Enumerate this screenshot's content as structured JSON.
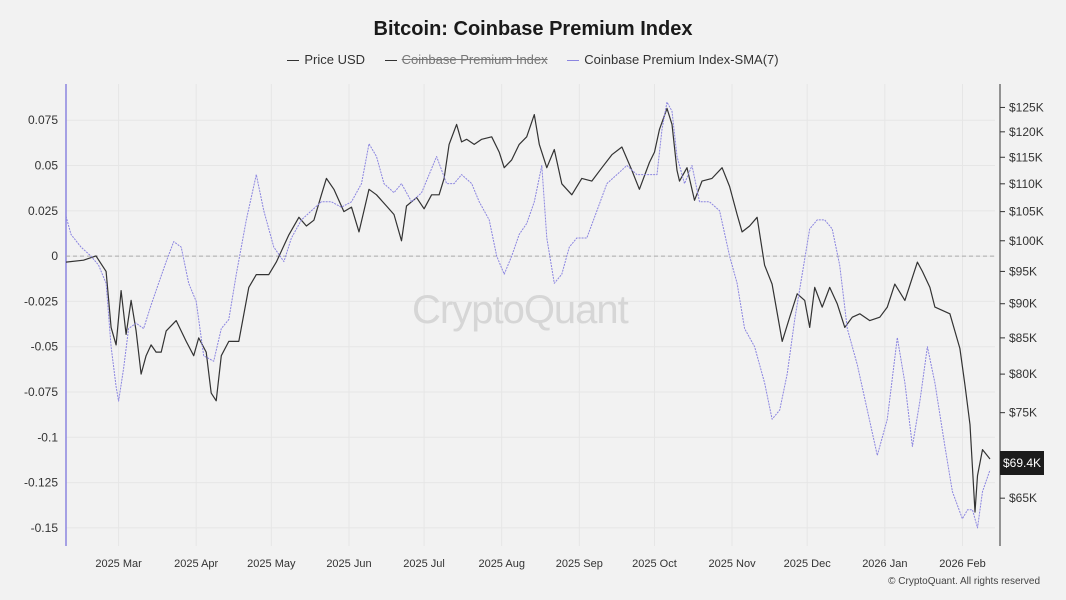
{
  "chart_data": {
    "type": "line",
    "title": "Bitcoin: Coinbase Premium Index",
    "legend": [
      {
        "name": "Price USD",
        "color": "#333333",
        "visible": true
      },
      {
        "name": "Coinbase Premium Index",
        "color": "#333333",
        "visible": false
      },
      {
        "name": "Coinbase Premium Index-SMA(7)",
        "color": "#8b85e0",
        "visible": true
      }
    ],
    "x_range": [
      "2025-02-08",
      "2026-02-14"
    ],
    "x_ticks": [
      "2025 Mar",
      "2025 Apr",
      "2025 May",
      "2025 Jun",
      "2025 Jul",
      "2025 Aug",
      "2025 Sep",
      "2025 Oct",
      "2025 Nov",
      "2025 Dec",
      "2026 Jan",
      "2026 Feb"
    ],
    "y_left": {
      "range": [
        -0.16,
        0.095
      ],
      "ticks": [
        0.075,
        0.05,
        0.025,
        0,
        -0.025,
        -0.05,
        -0.075,
        -0.1,
        -0.125,
        -0.15
      ],
      "tick_labels": [
        "0.075",
        "0.05",
        "0.025",
        "0",
        "-0.025",
        "-0.05",
        "-0.075",
        "-0.1",
        "-0.125",
        "-0.15"
      ]
    },
    "y_right": {
      "scale": "log",
      "range": [
        60000,
        130000
      ],
      "ticks": [
        125000,
        120000,
        115000,
        110000,
        105000,
        100000,
        95000,
        90000,
        85000,
        80000,
        75000,
        65000
      ],
      "tick_labels": [
        "$125K",
        "$120K",
        "$115K",
        "$110K",
        "$105K",
        "$100K",
        "$95K",
        "$90K",
        "$85K",
        "$80K",
        "$75K",
        "$65K"
      ]
    },
    "zero_line": "dashed",
    "current_price_label": "$69.4K",
    "series": [
      {
        "name": "Price USD",
        "axis": "right",
        "points": [
          [
            "2025-02-08",
            96500
          ],
          [
            "2025-02-15",
            96800
          ],
          [
            "2025-02-20",
            97500
          ],
          [
            "2025-02-24",
            95000
          ],
          [
            "2025-02-26",
            86500
          ],
          [
            "2025-02-28",
            84000
          ],
          [
            "2025-03-02",
            92000
          ],
          [
            "2025-03-04",
            85500
          ],
          [
            "2025-03-06",
            90500
          ],
          [
            "2025-03-08",
            86000
          ],
          [
            "2025-03-10",
            80000
          ],
          [
            "2025-03-12",
            82500
          ],
          [
            "2025-03-14",
            84000
          ],
          [
            "2025-03-16",
            83000
          ],
          [
            "2025-03-18",
            83000
          ],
          [
            "2025-03-20",
            86000
          ],
          [
            "2025-03-24",
            87500
          ],
          [
            "2025-03-28",
            84500
          ],
          [
            "2025-03-31",
            82500
          ],
          [
            "2025-04-02",
            85000
          ],
          [
            "2025-04-05",
            83000
          ],
          [
            "2025-04-07",
            77500
          ],
          [
            "2025-04-09",
            76500
          ],
          [
            "2025-04-11",
            82500
          ],
          [
            "2025-04-14",
            84500
          ],
          [
            "2025-04-18",
            84500
          ],
          [
            "2025-04-22",
            92500
          ],
          [
            "2025-04-25",
            94500
          ],
          [
            "2025-04-30",
            94500
          ],
          [
            "2025-05-03",
            96500
          ],
          [
            "2025-05-08",
            101000
          ],
          [
            "2025-05-12",
            104000
          ],
          [
            "2025-05-15",
            102500
          ],
          [
            "2025-05-18",
            103500
          ],
          [
            "2025-05-21",
            108000
          ],
          [
            "2025-05-23",
            111000
          ],
          [
            "2025-05-26",
            109000
          ],
          [
            "2025-05-30",
            105000
          ],
          [
            "2025-06-02",
            105800
          ],
          [
            "2025-06-05",
            101500
          ],
          [
            "2025-06-09",
            109000
          ],
          [
            "2025-06-12",
            108000
          ],
          [
            "2025-06-16",
            106000
          ],
          [
            "2025-06-19",
            104500
          ],
          [
            "2025-06-22",
            100000
          ],
          [
            "2025-06-24",
            106000
          ],
          [
            "2025-06-28",
            107500
          ],
          [
            "2025-07-01",
            105500
          ],
          [
            "2025-07-04",
            108000
          ],
          [
            "2025-07-07",
            108000
          ],
          [
            "2025-07-09",
            111000
          ],
          [
            "2025-07-11",
            117500
          ],
          [
            "2025-07-14",
            121500
          ],
          [
            "2025-07-16",
            118000
          ],
          [
            "2025-07-18",
            118500
          ],
          [
            "2025-07-21",
            117500
          ],
          [
            "2025-07-24",
            118500
          ],
          [
            "2025-07-28",
            119000
          ],
          [
            "2025-07-31",
            116000
          ],
          [
            "2025-08-02",
            113000
          ],
          [
            "2025-08-05",
            114500
          ],
          [
            "2025-08-08",
            117500
          ],
          [
            "2025-08-11",
            119000
          ],
          [
            "2025-08-14",
            123500
          ],
          [
            "2025-08-16",
            117500
          ],
          [
            "2025-08-19",
            113000
          ],
          [
            "2025-08-22",
            116500
          ],
          [
            "2025-08-25",
            110000
          ],
          [
            "2025-08-29",
            108000
          ],
          [
            "2025-09-02",
            111000
          ],
          [
            "2025-09-06",
            110500
          ],
          [
            "2025-09-10",
            113000
          ],
          [
            "2025-09-14",
            115500
          ],
          [
            "2025-09-18",
            117000
          ],
          [
            "2025-09-22",
            112500
          ],
          [
            "2025-09-25",
            109000
          ],
          [
            "2025-09-29",
            114000
          ],
          [
            "2025-10-01",
            116000
          ],
          [
            "2025-10-03",
            120500
          ],
          [
            "2025-10-06",
            124800
          ],
          [
            "2025-10-08",
            121500
          ],
          [
            "2025-10-10",
            112500
          ],
          [
            "2025-10-11",
            110500
          ],
          [
            "2025-10-14",
            113000
          ],
          [
            "2025-10-17",
            107000
          ],
          [
            "2025-10-20",
            110500
          ],
          [
            "2025-10-24",
            111000
          ],
          [
            "2025-10-28",
            113000
          ],
          [
            "2025-10-31",
            109500
          ],
          [
            "2025-11-03",
            104500
          ],
          [
            "2025-11-05",
            101500
          ],
          [
            "2025-11-08",
            102500
          ],
          [
            "2025-11-11",
            104000
          ],
          [
            "2025-11-14",
            96000
          ],
          [
            "2025-11-17",
            93000
          ],
          [
            "2025-11-21",
            84500
          ],
          [
            "2025-11-24",
            88000
          ],
          [
            "2025-11-27",
            91500
          ],
          [
            "2025-11-30",
            90500
          ],
          [
            "2025-12-02",
            86500
          ],
          [
            "2025-12-04",
            92500
          ],
          [
            "2025-12-07",
            89500
          ],
          [
            "2025-12-10",
            92500
          ],
          [
            "2025-12-13",
            90000
          ],
          [
            "2025-12-16",
            86500
          ],
          [
            "2025-12-19",
            88000
          ],
          [
            "2025-12-22",
            88500
          ],
          [
            "2025-12-26",
            87500
          ],
          [
            "2025-12-30",
            88000
          ],
          [
            "2026-01-02",
            89500
          ],
          [
            "2026-01-05",
            93000
          ],
          [
            "2026-01-09",
            90500
          ],
          [
            "2026-01-14",
            96500
          ],
          [
            "2026-01-16",
            95000
          ],
          [
            "2026-01-19",
            92500
          ],
          [
            "2026-01-21",
            89500
          ],
          [
            "2026-01-24",
            89000
          ],
          [
            "2026-01-27",
            88500
          ],
          [
            "2026-01-31",
            83500
          ],
          [
            "2026-02-02",
            78500
          ],
          [
            "2026-02-04",
            73500
          ],
          [
            "2026-02-06",
            63500
          ],
          [
            "2026-02-07",
            67500
          ],
          [
            "2026-02-09",
            70500
          ],
          [
            "2026-02-12",
            69400
          ]
        ]
      },
      {
        "name": "Coinbase Premium Index-SMA(7)",
        "axis": "left",
        "points": [
          [
            "2025-02-08",
            0.022
          ],
          [
            "2025-02-10",
            0.012
          ],
          [
            "2025-02-14",
            0.005
          ],
          [
            "2025-02-18",
            0.0
          ],
          [
            "2025-02-21",
            -0.005
          ],
          [
            "2025-02-24",
            -0.015
          ],
          [
            "2025-02-26",
            -0.05
          ],
          [
            "2025-02-28",
            -0.072
          ],
          [
            "2025-03-01",
            -0.08
          ],
          [
            "2025-03-03",
            -0.062
          ],
          [
            "2025-03-05",
            -0.04
          ],
          [
            "2025-03-08",
            -0.037
          ],
          [
            "2025-03-11",
            -0.04
          ],
          [
            "2025-03-14",
            -0.027
          ],
          [
            "2025-03-17",
            -0.015
          ],
          [
            "2025-03-20",
            -0.003
          ],
          [
            "2025-03-23",
            0.008
          ],
          [
            "2025-03-26",
            0.005
          ],
          [
            "2025-03-29",
            -0.015
          ],
          [
            "2025-04-01",
            -0.025
          ],
          [
            "2025-04-04",
            -0.055
          ],
          [
            "2025-04-08",
            -0.058
          ],
          [
            "2025-04-11",
            -0.04
          ],
          [
            "2025-04-14",
            -0.035
          ],
          [
            "2025-04-17",
            -0.01
          ],
          [
            "2025-04-21",
            0.02
          ],
          [
            "2025-04-25",
            0.045
          ],
          [
            "2025-04-28",
            0.025
          ],
          [
            "2025-05-02",
            0.005
          ],
          [
            "2025-05-06",
            -0.003
          ],
          [
            "2025-05-09",
            0.01
          ],
          [
            "2025-05-13",
            0.02
          ],
          [
            "2025-05-17",
            0.025
          ],
          [
            "2025-05-21",
            0.03
          ],
          [
            "2025-05-25",
            0.03
          ],
          [
            "2025-05-29",
            0.027
          ],
          [
            "2025-06-02",
            0.03
          ],
          [
            "2025-06-06",
            0.04
          ],
          [
            "2025-06-09",
            0.062
          ],
          [
            "2025-06-12",
            0.055
          ],
          [
            "2025-06-15",
            0.04
          ],
          [
            "2025-06-19",
            0.035
          ],
          [
            "2025-06-22",
            0.04
          ],
          [
            "2025-06-26",
            0.03
          ],
          [
            "2025-06-30",
            0.035
          ],
          [
            "2025-07-03",
            0.045
          ],
          [
            "2025-07-06",
            0.055
          ],
          [
            "2025-07-10",
            0.04
          ],
          [
            "2025-07-13",
            0.04
          ],
          [
            "2025-07-16",
            0.045
          ],
          [
            "2025-07-20",
            0.04
          ],
          [
            "2025-07-23",
            0.03
          ],
          [
            "2025-07-27",
            0.02
          ],
          [
            "2025-07-30",
            0.0
          ],
          [
            "2025-08-02",
            -0.01
          ],
          [
            "2025-08-05",
            0.0
          ],
          [
            "2025-08-08",
            0.012
          ],
          [
            "2025-08-11",
            0.018
          ],
          [
            "2025-08-14",
            0.03
          ],
          [
            "2025-08-17",
            0.05
          ],
          [
            "2025-08-19",
            0.01
          ],
          [
            "2025-08-22",
            -0.015
          ],
          [
            "2025-08-25",
            -0.01
          ],
          [
            "2025-08-28",
            0.005
          ],
          [
            "2025-08-31",
            0.01
          ],
          [
            "2025-09-04",
            0.01
          ],
          [
            "2025-09-08",
            0.025
          ],
          [
            "2025-09-12",
            0.04
          ],
          [
            "2025-09-16",
            0.045
          ],
          [
            "2025-09-20",
            0.05
          ],
          [
            "2025-09-24",
            0.045
          ],
          [
            "2025-09-28",
            0.045
          ],
          [
            "2025-10-02",
            0.045
          ],
          [
            "2025-10-04",
            0.07
          ],
          [
            "2025-10-06",
            0.085
          ],
          [
            "2025-10-08",
            0.08
          ],
          [
            "2025-10-10",
            0.055
          ],
          [
            "2025-10-13",
            0.04
          ],
          [
            "2025-10-16",
            0.05
          ],
          [
            "2025-10-19",
            0.03
          ],
          [
            "2025-10-23",
            0.03
          ],
          [
            "2025-10-27",
            0.025
          ],
          [
            "2025-10-31",
            0.0
          ],
          [
            "2025-11-03",
            -0.015
          ],
          [
            "2025-11-06",
            -0.04
          ],
          [
            "2025-11-10",
            -0.05
          ],
          [
            "2025-11-14",
            -0.07
          ],
          [
            "2025-11-17",
            -0.09
          ],
          [
            "2025-11-20",
            -0.085
          ],
          [
            "2025-11-23",
            -0.065
          ],
          [
            "2025-11-26",
            -0.035
          ],
          [
            "2025-11-29",
            -0.01
          ],
          [
            "2025-12-02",
            0.015
          ],
          [
            "2025-12-05",
            0.02
          ],
          [
            "2025-12-08",
            0.02
          ],
          [
            "2025-12-11",
            0.015
          ],
          [
            "2025-12-14",
            -0.005
          ],
          [
            "2025-12-17",
            -0.04
          ],
          [
            "2025-12-21",
            -0.06
          ],
          [
            "2025-12-25",
            -0.085
          ],
          [
            "2025-12-29",
            -0.11
          ],
          [
            "2026-01-02",
            -0.09
          ],
          [
            "2026-01-06",
            -0.045
          ],
          [
            "2026-01-09",
            -0.07
          ],
          [
            "2026-01-12",
            -0.105
          ],
          [
            "2026-01-15",
            -0.08
          ],
          [
            "2026-01-18",
            -0.05
          ],
          [
            "2026-01-21",
            -0.07
          ],
          [
            "2026-01-25",
            -0.105
          ],
          [
            "2026-01-28",
            -0.13
          ],
          [
            "2026-02-01",
            -0.145
          ],
          [
            "2026-02-03",
            -0.14
          ],
          [
            "2026-02-05",
            -0.14
          ],
          [
            "2026-02-07",
            -0.15
          ],
          [
            "2026-02-09",
            -0.13
          ],
          [
            "2026-02-12",
            -0.118
          ]
        ]
      }
    ]
  },
  "watermark": "CryptoQuant",
  "copyright": "© CryptoQuant. All rights reserved"
}
